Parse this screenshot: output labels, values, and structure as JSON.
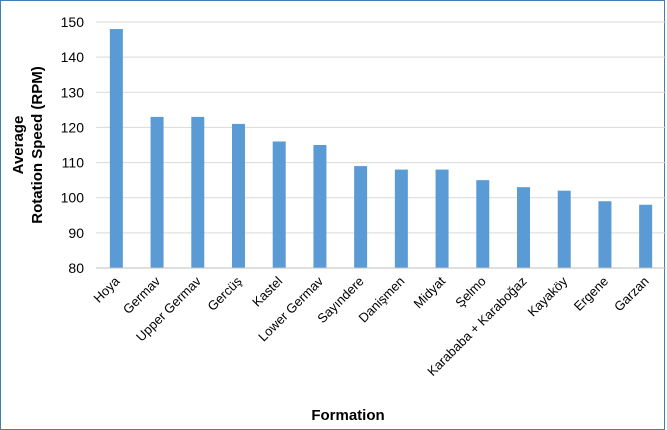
{
  "chart_data": {
    "type": "bar",
    "title": "",
    "xlabel": "Formation",
    "ylabel_lines": [
      "Average",
      "Rotation Speed (RPM)"
    ],
    "ylim": [
      80,
      150
    ],
    "yticks": [
      80,
      90,
      100,
      110,
      120,
      130,
      140,
      150
    ],
    "grid": true,
    "bar_color": "#5b9bd5",
    "categories": [
      "Hoya",
      "Germav",
      "Upper Germav",
      "Gercüş",
      "Kastel",
      "Lower Germav",
      "Sayındere",
      "Danişmen",
      "Midyat",
      "Şelmo",
      "Karababa + Karaboğaz",
      "Kayaköy",
      "Ergene",
      "Garzan"
    ],
    "values": [
      148,
      123,
      123,
      121,
      116,
      115,
      109,
      108,
      108,
      105,
      103,
      102,
      99,
      98
    ]
  }
}
